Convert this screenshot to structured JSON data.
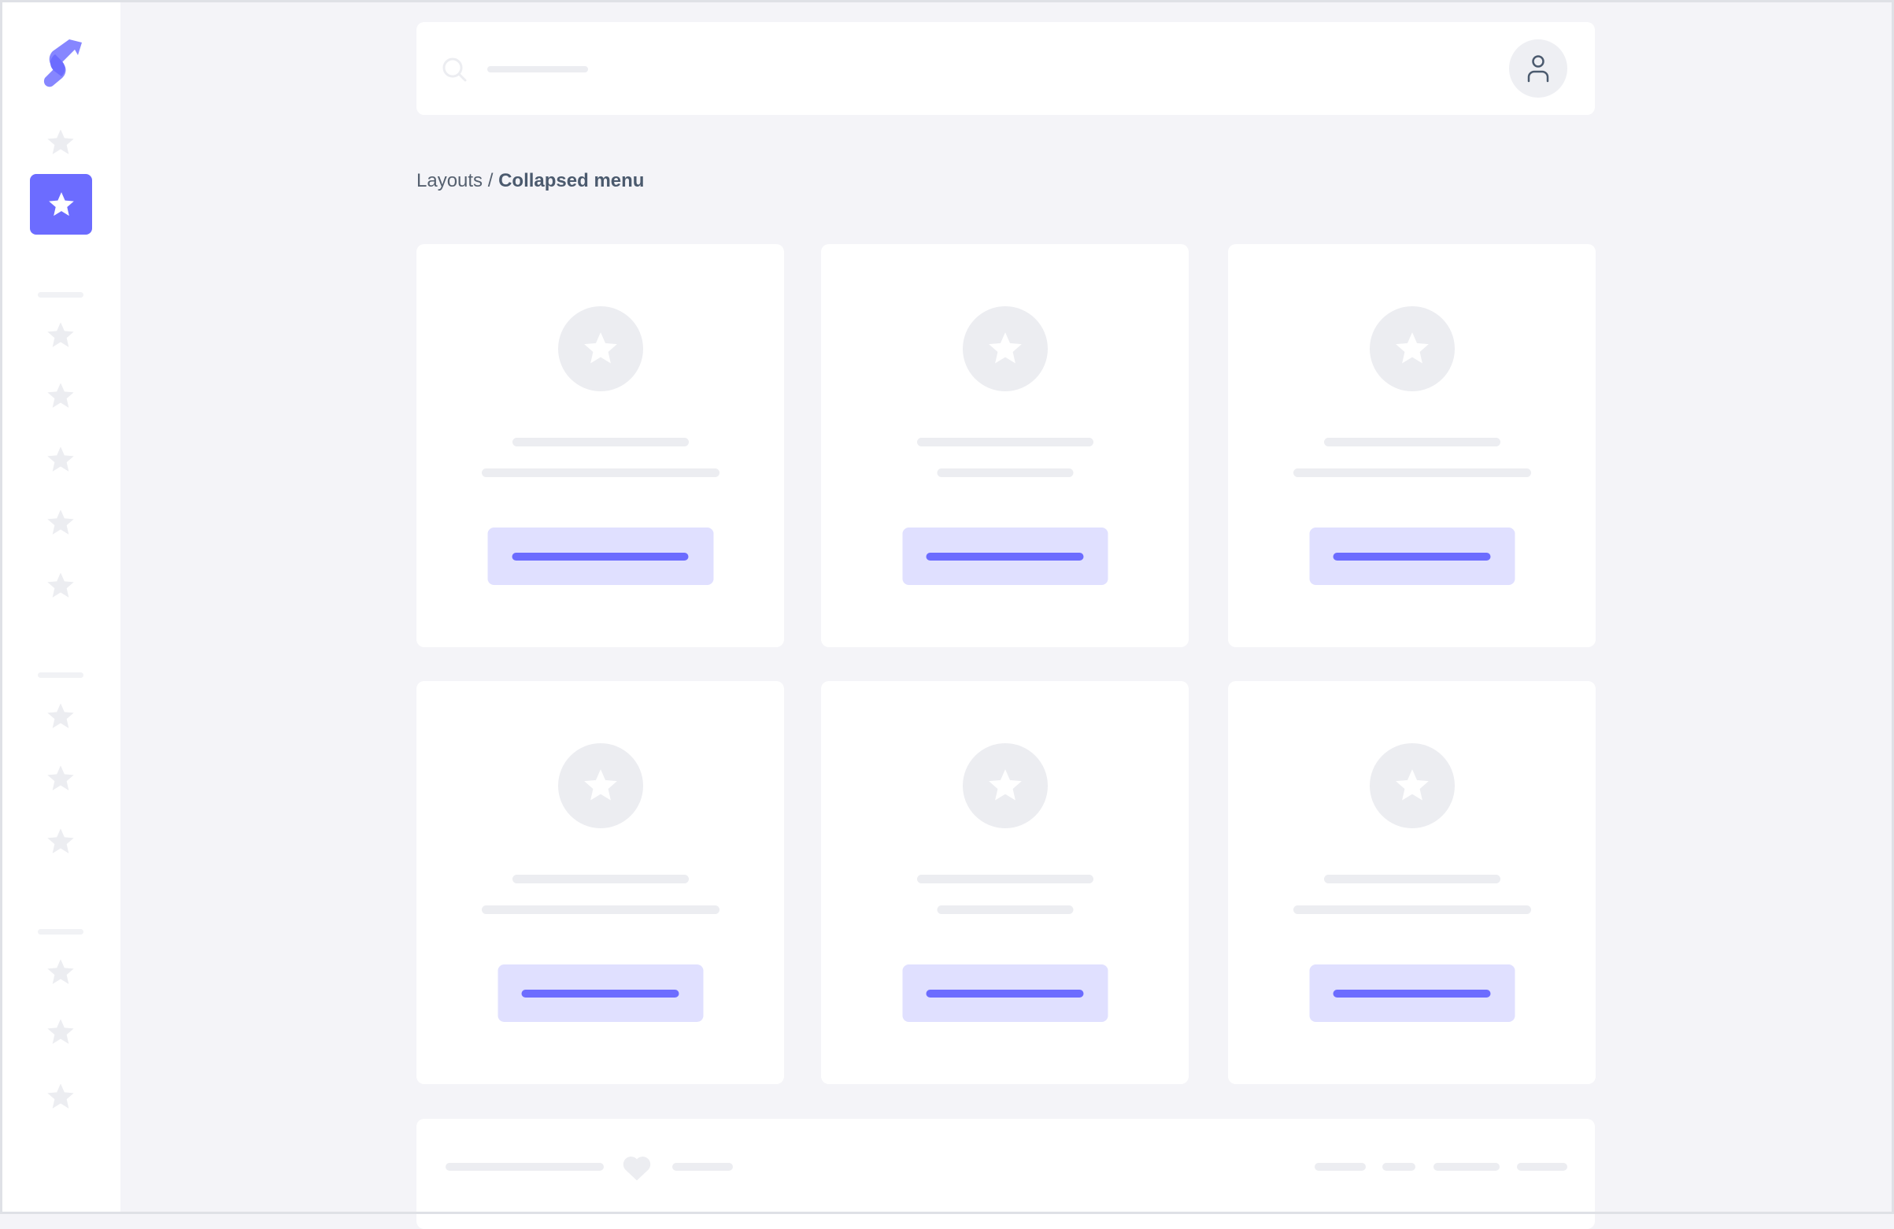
{
  "colors": {
    "accent": "#6c6cff",
    "accent_light": "#e0e0ff",
    "placeholder": "#ecedf1",
    "background": "#f4f4f8"
  },
  "sidebar": {
    "logo": "brand-s-logo",
    "items": [
      {
        "icon": "star-icon",
        "active": false
      },
      {
        "icon": "star-icon",
        "active": true
      },
      {
        "icon": "star-icon"
      },
      {
        "icon": "star-icon"
      },
      {
        "icon": "star-icon"
      },
      {
        "icon": "star-icon"
      },
      {
        "icon": "star-icon"
      },
      {
        "icon": "star-icon"
      },
      {
        "icon": "star-icon"
      },
      {
        "icon": "star-icon"
      },
      {
        "icon": "star-icon"
      },
      {
        "icon": "star-icon"
      },
      {
        "icon": "star-icon"
      }
    ]
  },
  "header": {
    "search_icon": "search-icon",
    "avatar_icon": "user-icon"
  },
  "breadcrumb": {
    "parent": "Layouts",
    "separator": "/",
    "current": "Collapsed menu"
  },
  "cards": [
    {
      "icon": "star-icon"
    },
    {
      "icon": "star-icon"
    },
    {
      "icon": "star-icon"
    },
    {
      "icon": "star-icon"
    },
    {
      "icon": "star-icon"
    },
    {
      "icon": "star-icon"
    }
  ],
  "footer": {
    "icon": "heart-icon"
  }
}
